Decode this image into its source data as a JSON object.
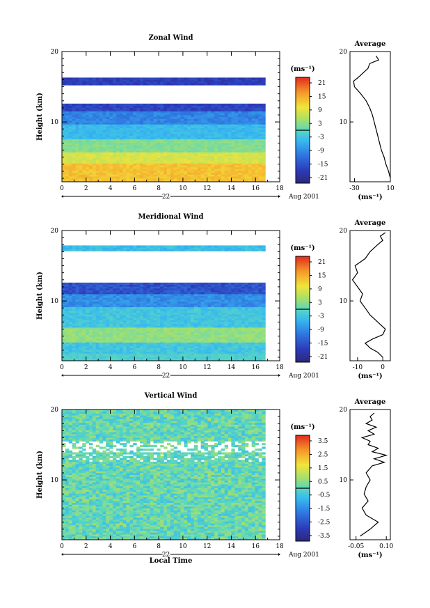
{
  "chart_data": [
    {
      "type": "heatmap",
      "title": "Zonal Wind",
      "ylabel": "Height (km)",
      "xlabel": "",
      "x_ticks": [
        "0",
        "2",
        "4",
        "6",
        "8",
        "10",
        "12",
        "14",
        "16",
        "18"
      ],
      "y_ticks": [
        "10",
        "20"
      ],
      "xlim": [
        0,
        18
      ],
      "ylim": [
        1.5,
        20
      ],
      "data_x_range": [
        0,
        16.8
      ],
      "date_tick": "22",
      "date_label": "Aug 2001",
      "colorbar": {
        "unit": "(ms⁻¹)",
        "labels": [
          "21",
          "15",
          "9",
          "3",
          "-3",
          "-9",
          "-15",
          "-21"
        ],
        "range": [
          -24,
          24
        ],
        "contour_line": 0
      },
      "mean_profile": {
        "title": "Average",
        "unit": "(ms⁻¹)",
        "x_ticks": [
          "-30",
          "10"
        ],
        "xlim": [
          -35,
          10
        ],
        "y_ticks": [
          "10",
          "20"
        ],
        "height": [
          2.0,
          3.0,
          4.0,
          5.0,
          6.0,
          7.0,
          8.0,
          9.0,
          10.0,
          11.0,
          12.0,
          13.0,
          14.0,
          15.0,
          15.8,
          16.3,
          17.0,
          17.6,
          18.3,
          18.8,
          19.4
        ],
        "values": [
          10,
          8,
          5,
          3,
          0,
          -2,
          -4,
          -6,
          -8,
          -10,
          -13,
          -17,
          -23,
          -30,
          -31,
          -26,
          -20,
          -15,
          -13,
          -3,
          -6
        ]
      }
    },
    {
      "type": "heatmap",
      "title": "Meridional Wind",
      "ylabel": "Height (km)",
      "xlabel": "",
      "x_ticks": [
        "0",
        "2",
        "4",
        "6",
        "8",
        "10",
        "12",
        "14",
        "16",
        "18"
      ],
      "y_ticks": [
        "10",
        "20"
      ],
      "xlim": [
        0,
        18
      ],
      "ylim": [
        1.5,
        20
      ],
      "data_x_range": [
        0,
        16.8
      ],
      "date_tick": "22",
      "date_label": "Aug 2001",
      "colorbar": {
        "unit": "(ms⁻¹)",
        "labels": [
          "21",
          "15",
          "9",
          "3",
          "-3",
          "-9",
          "-15",
          "-21"
        ],
        "range": [
          -24,
          24
        ],
        "contour_line": 0
      },
      "mean_profile": {
        "title": "Average",
        "unit": "(ms⁻¹)",
        "x_ticks": [
          "-10",
          "0"
        ],
        "xlim": [
          -13,
          3
        ],
        "y_ticks": [
          "10",
          "20"
        ],
        "height": [
          2.0,
          2.7,
          3.3,
          4.0,
          4.6,
          5.2,
          6.0,
          7.0,
          8.0,
          9.0,
          10.0,
          11.0,
          12.0,
          13.0,
          14.0,
          15.0,
          16.0,
          17.0,
          18.0,
          18.6,
          19.2,
          19.7
        ],
        "values": [
          0,
          -2,
          -5,
          -7,
          -4,
          0,
          1,
          -2,
          -5,
          -7,
          -9,
          -8,
          -10,
          -12,
          -10,
          -11,
          -7,
          -5,
          -2,
          0,
          -1,
          1
        ]
      }
    },
    {
      "type": "heatmap",
      "title": "Vertical Wind",
      "ylabel": "Height (km)",
      "xlabel": "Local Time",
      "x_ticks": [
        "0",
        "2",
        "4",
        "6",
        "8",
        "10",
        "12",
        "14",
        "16",
        "18"
      ],
      "y_ticks": [
        "10",
        "20"
      ],
      "xlim": [
        0,
        18
      ],
      "ylim": [
        1.5,
        20
      ],
      "data_x_range": [
        0,
        16.8
      ],
      "date_tick": "22",
      "date_label": "Aug 2001",
      "colorbar": {
        "unit": "(ms⁻¹)",
        "labels": [
          "3.5",
          "2.5",
          "1.5",
          "0.5",
          "-0.5",
          "-1.5",
          "-2.5",
          "-3.5"
        ],
        "range": [
          -4,
          4
        ],
        "contour_line": 0
      },
      "mean_profile": {
        "title": "Average",
        "unit": "(ms⁻¹)",
        "x_ticks": [
          "-0.05",
          "0.10"
        ],
        "xlim": [
          -0.08,
          0.12
        ],
        "y_ticks": [
          "10",
          "20"
        ],
        "height": [
          2.0,
          3.0,
          4.0,
          5.0,
          6.0,
          7.0,
          8.0,
          9.0,
          10.0,
          11.0,
          12.0,
          12.5,
          13.0,
          13.5,
          14.0,
          14.5,
          15.0,
          15.5,
          16.0,
          16.5,
          17.0,
          17.5,
          18.0,
          18.5,
          19.0,
          19.5
        ],
        "values": [
          -0.03,
          0.02,
          0.06,
          0.0,
          -0.02,
          0.01,
          -0.01,
          0.0,
          0.02,
          0.0,
          0.03,
          0.09,
          0.04,
          0.1,
          0.03,
          0.06,
          0.01,
          0.02,
          -0.02,
          0.04,
          0.01,
          0.05,
          0.0,
          0.03,
          0.02,
          0.04
        ]
      }
    }
  ]
}
